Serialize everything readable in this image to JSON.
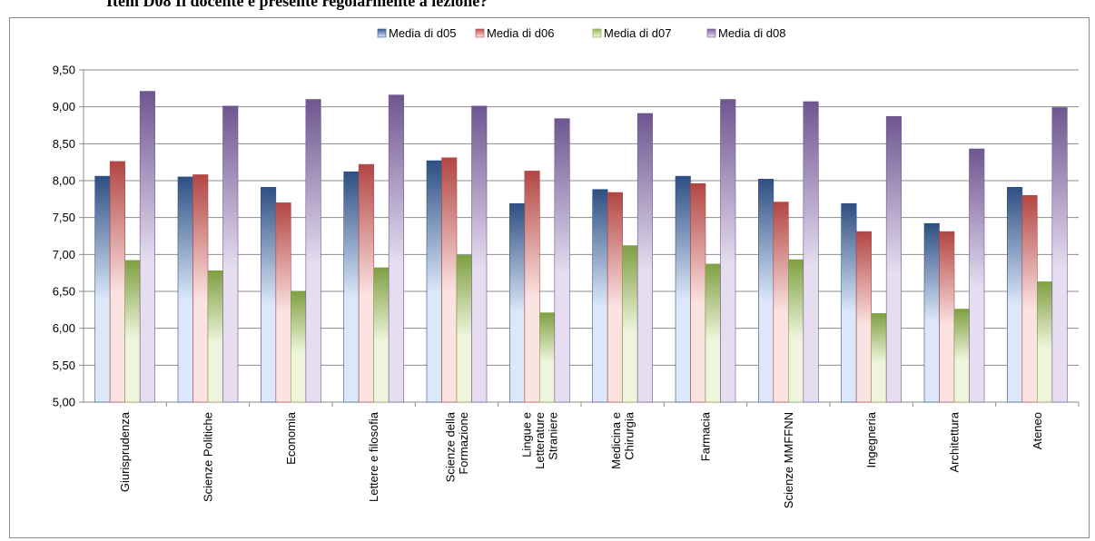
{
  "page": {
    "title": "Item D08 Il docente è presente regolarmente a lezione?"
  },
  "chart_data": {
    "type": "bar",
    "categories": [
      [
        "Giurisprudenza"
      ],
      [
        "Scienze Politiche"
      ],
      [
        "Economia"
      ],
      [
        "Lettere e filosofia"
      ],
      [
        "Scienze della",
        "Formazione"
      ],
      [
        "Lingue e",
        "Letterature",
        "Straniere"
      ],
      [
        "Medicina e",
        "Chirurgia"
      ],
      [
        "Farmacia"
      ],
      [
        "Scienze MMFFNN"
      ],
      [
        "Ingegneria"
      ],
      [
        "Architettura"
      ],
      [
        "Ateneo"
      ]
    ],
    "series": [
      {
        "name": "Media di d05",
        "color": "#3a5f96",
        "light": "#dce8fa",
        "dark": "#2e4f82",
        "values": [
          8.06,
          8.05,
          7.91,
          8.12,
          8.27,
          7.69,
          7.88,
          8.06,
          8.02,
          7.69,
          7.42,
          7.91
        ]
      },
      {
        "name": "Media di d06",
        "color": "#c0504d",
        "light": "#fbe3e2",
        "dark": "#b24643",
        "values": [
          8.26,
          8.08,
          7.7,
          8.22,
          8.31,
          8.13,
          7.84,
          7.96,
          7.71,
          7.31,
          7.31,
          7.8
        ]
      },
      {
        "name": "Media di d07",
        "color": "#9bbb59",
        "light": "#eef5dc",
        "dark": "#7f9f42",
        "values": [
          6.92,
          6.78,
          6.5,
          6.82,
          6.99,
          6.21,
          7.12,
          6.87,
          6.93,
          6.2,
          6.26,
          6.63
        ]
      },
      {
        "name": "Media di d08",
        "color": "#8064a2",
        "light": "#e6def0",
        "dark": "#6e5690",
        "values": [
          9.21,
          9.01,
          9.1,
          9.16,
          9.01,
          8.84,
          8.91,
          9.1,
          9.07,
          8.87,
          8.43,
          8.99
        ]
      }
    ],
    "ylim": [
      5.0,
      9.5
    ],
    "yticks": [
      "5,00",
      "5,50",
      "6,00",
      "6,50",
      "7,00",
      "7,50",
      "8,00",
      "8,50",
      "9,00",
      "9,50"
    ],
    "grid": true,
    "legend_position": "top"
  }
}
